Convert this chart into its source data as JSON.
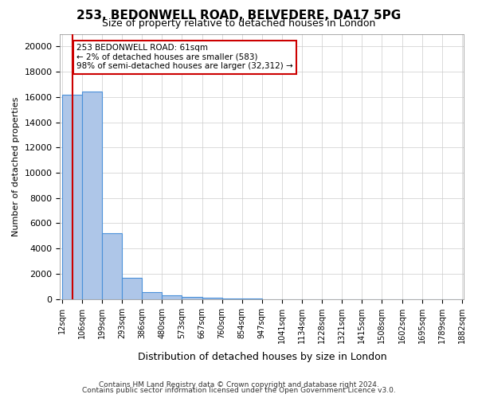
{
  "title": "253, BEDONWELL ROAD, BELVEDERE, DA17 5PG",
  "subtitle": "Size of property relative to detached houses in London",
  "xlabel": "Distribution of detached houses by size in London",
  "ylabel": "Number of detached properties",
  "bin_labels": [
    "12sqm",
    "106sqm",
    "199sqm",
    "293sqm",
    "386sqm",
    "480sqm",
    "573sqm",
    "667sqm",
    "760sqm",
    "854sqm",
    "947sqm",
    "1041sqm",
    "1134sqm",
    "1228sqm",
    "1321sqm",
    "1415sqm",
    "1508sqm",
    "1602sqm",
    "1695sqm",
    "1789sqm",
    "1882sqm"
  ],
  "bar_heights": [
    16200,
    16400,
    5200,
    1700,
    550,
    280,
    150,
    100,
    60,
    30,
    0,
    0,
    0,
    0,
    0,
    0,
    0,
    0,
    0,
    0
  ],
  "bar_color": "#aec6e8",
  "bar_edge_color": "#4a90d9",
  "ylim": [
    0,
    21000
  ],
  "yticks": [
    0,
    2000,
    4000,
    6000,
    8000,
    10000,
    12000,
    14000,
    16000,
    18000,
    20000
  ],
  "property_line_x": 0.52,
  "property_line_color": "#cc0000",
  "annotation_text": "253 BEDONWELL ROAD: 61sqm\n← 2% of detached houses are smaller (583)\n98% of semi-detached houses are larger (32,312) →",
  "annotation_box_color": "#cc0000",
  "footer_line1": "Contains HM Land Registry data © Crown copyright and database right 2024.",
  "footer_line2": "Contains public sector information licensed under the Open Government Licence v3.0.",
  "background_color": "#ffffff",
  "grid_color": "#cccccc"
}
